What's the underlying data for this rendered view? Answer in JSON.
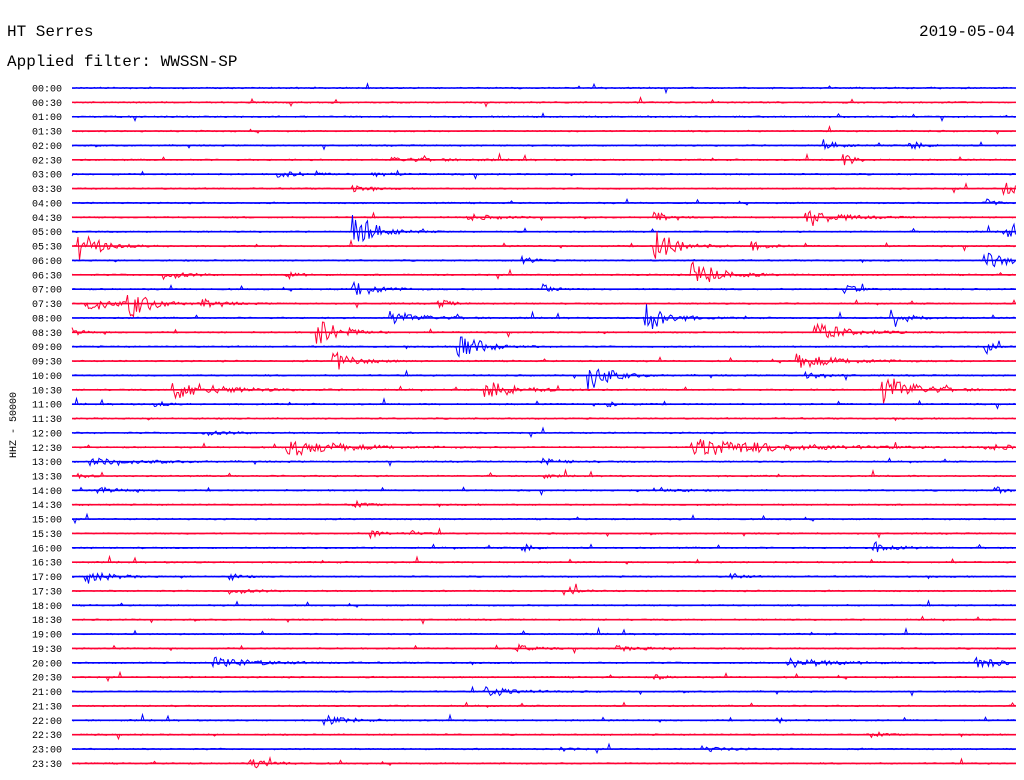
{
  "header": {
    "station": "HT Serres",
    "date": "2019-05-04",
    "filter": "Applied filter: WWSSN-SP"
  },
  "chart_data": {
    "type": "line",
    "title": "HT Serres",
    "subtitle": "Applied filter: WWSSN-SP",
    "date": "2019-05-04",
    "ylabel": "HHZ - 50000",
    "xlabel": "",
    "grid": false,
    "trace_colors": [
      "#0000ff",
      "#ff0033"
    ],
    "rows": [
      {
        "label": "00:00",
        "events": []
      },
      {
        "label": "00:30",
        "events": []
      },
      {
        "label": "01:00",
        "events": []
      },
      {
        "label": "01:30",
        "events": []
      },
      {
        "label": "02:00",
        "events": [
          {
            "x": 0.8,
            "amp": 0.5,
            "dur": 0.015
          },
          {
            "x": 0.89,
            "amp": 0.6,
            "dur": 0.012
          }
        ]
      },
      {
        "label": "02:30",
        "events": [
          {
            "x": 0.34,
            "amp": 0.3,
            "dur": 0.05
          },
          {
            "x": 0.82,
            "amp": 0.8,
            "dur": 0.01
          }
        ]
      },
      {
        "label": "03:00",
        "events": [
          {
            "x": 0.22,
            "amp": 0.4,
            "dur": 0.03
          },
          {
            "x": 0.32,
            "amp": 0.3,
            "dur": 0.02
          }
        ]
      },
      {
        "label": "03:30",
        "events": [
          {
            "x": 0.99,
            "amp": 0.8,
            "dur": 0.02
          },
          {
            "x": 0.3,
            "amp": 0.4,
            "dur": 0.015
          }
        ]
      },
      {
        "label": "04:00",
        "events": [
          {
            "x": 0.97,
            "amp": 0.5,
            "dur": 0.01
          }
        ]
      },
      {
        "label": "04:30",
        "events": [
          {
            "x": 0.78,
            "amp": 1.1,
            "dur": 0.03
          },
          {
            "x": 0.62,
            "amp": 0.7,
            "dur": 0.01
          },
          {
            "x": 0.42,
            "amp": 0.4,
            "dur": 0.03
          }
        ]
      },
      {
        "label": "05:00",
        "events": [
          {
            "x": 0.3,
            "amp": 2.6,
            "dur": 0.02
          },
          {
            "x": 0.99,
            "amp": 0.9,
            "dur": 0.012
          }
        ]
      },
      {
        "label": "05:30",
        "events": [
          {
            "x": 0.01,
            "amp": 1.9,
            "dur": 0.02
          },
          {
            "x": 0.62,
            "amp": 2.3,
            "dur": 0.02
          },
          {
            "x": 0.72,
            "amp": 0.6,
            "dur": 0.015
          }
        ]
      },
      {
        "label": "06:00",
        "events": [
          {
            "x": 0.97,
            "amp": 1.0,
            "dur": 0.03
          },
          {
            "x": 0.48,
            "amp": 0.5,
            "dur": 0.01
          }
        ]
      },
      {
        "label": "06:30",
        "events": [
          {
            "x": 0.66,
            "amp": 1.9,
            "dur": 0.025
          },
          {
            "x": 0.1,
            "amp": 0.6,
            "dur": 0.02
          },
          {
            "x": 0.23,
            "amp": 0.5,
            "dur": 0.01
          }
        ]
      },
      {
        "label": "07:00",
        "events": [
          {
            "x": 0.3,
            "amp": 1.3,
            "dur": 0.02
          },
          {
            "x": 0.5,
            "amp": 0.8,
            "dur": 0.01
          },
          {
            "x": 0.82,
            "amp": 0.8,
            "dur": 0.01
          }
        ]
      },
      {
        "label": "07:30",
        "events": [
          {
            "x": 0.02,
            "amp": 1.2,
            "dur": 0.02
          },
          {
            "x": 0.06,
            "amp": 2.3,
            "dur": 0.02
          },
          {
            "x": 0.14,
            "amp": 0.5,
            "dur": 0.02
          },
          {
            "x": 0.39,
            "amp": 0.6,
            "dur": 0.01
          }
        ]
      },
      {
        "label": "08:00",
        "events": [
          {
            "x": 0.34,
            "amp": 0.9,
            "dur": 0.03
          },
          {
            "x": 0.61,
            "amp": 2.2,
            "dur": 0.02
          },
          {
            "x": 0.87,
            "amp": 1.5,
            "dur": 0.015
          }
        ]
      },
      {
        "label": "08:30",
        "events": [
          {
            "x": 0.26,
            "amp": 2.2,
            "dur": 0.02
          },
          {
            "x": 0.79,
            "amp": 1.3,
            "dur": 0.03
          },
          {
            "x": 0.0,
            "amp": 0.6,
            "dur": 0.01
          }
        ]
      },
      {
        "label": "09:00",
        "events": [
          {
            "x": 0.41,
            "amp": 2.5,
            "dur": 0.02
          },
          {
            "x": 0.97,
            "amp": 0.6,
            "dur": 0.01
          }
        ]
      },
      {
        "label": "09:30",
        "events": [
          {
            "x": 0.28,
            "amp": 1.3,
            "dur": 0.02
          },
          {
            "x": 0.77,
            "amp": 1.0,
            "dur": 0.04
          }
        ]
      },
      {
        "label": "10:00",
        "events": [
          {
            "x": 0.55,
            "amp": 2.1,
            "dur": 0.02
          },
          {
            "x": 0.78,
            "amp": 0.5,
            "dur": 0.02
          }
        ]
      },
      {
        "label": "10:30",
        "events": [
          {
            "x": 0.11,
            "amp": 1.4,
            "dur": 0.04
          },
          {
            "x": 0.44,
            "amp": 1.3,
            "dur": 0.03
          },
          {
            "x": 0.86,
            "amp": 2.3,
            "dur": 0.03
          }
        ]
      },
      {
        "label": "11:00",
        "events": [
          {
            "x": 0.09,
            "amp": 0.4,
            "dur": 0.01
          },
          {
            "x": 0.57,
            "amp": 0.4,
            "dur": 0.01
          }
        ]
      },
      {
        "label": "11:30",
        "events": []
      },
      {
        "label": "12:00",
        "events": [
          {
            "x": 0.14,
            "amp": 0.3,
            "dur": 0.03
          }
        ]
      },
      {
        "label": "12:30",
        "events": [
          {
            "x": 0.23,
            "amp": 1.3,
            "dur": 0.05
          },
          {
            "x": 0.66,
            "amp": 1.4,
            "dur": 0.08
          },
          {
            "x": 0.97,
            "amp": 0.3,
            "dur": 0.05
          }
        ]
      },
      {
        "label": "13:00",
        "events": [
          {
            "x": 0.02,
            "amp": 0.5,
            "dur": 0.05
          },
          {
            "x": 0.5,
            "amp": 0.4,
            "dur": 0.02
          }
        ]
      },
      {
        "label": "13:30",
        "events": [
          {
            "x": 0.01,
            "amp": 0.3,
            "dur": 0.01
          },
          {
            "x": 0.5,
            "amp": 0.3,
            "dur": 0.01
          }
        ]
      },
      {
        "label": "14:00",
        "events": [
          {
            "x": 0.03,
            "amp": 0.4,
            "dur": 0.02
          },
          {
            "x": 0.62,
            "amp": 0.4,
            "dur": 0.02
          },
          {
            "x": 0.98,
            "amp": 0.5,
            "dur": 0.01
          }
        ]
      },
      {
        "label": "14:30",
        "events": [
          {
            "x": 0.3,
            "amp": 0.5,
            "dur": 0.01
          }
        ]
      },
      {
        "label": "15:00",
        "events": []
      },
      {
        "label": "15:30",
        "events": [
          {
            "x": 0.32,
            "amp": 0.6,
            "dur": 0.01
          },
          {
            "x": 0.36,
            "amp": 0.4,
            "dur": 0.01
          }
        ]
      },
      {
        "label": "16:00",
        "events": [
          {
            "x": 0.48,
            "amp": 0.5,
            "dur": 0.01
          },
          {
            "x": 0.85,
            "amp": 0.8,
            "dur": 0.02
          }
        ]
      },
      {
        "label": "16:30",
        "events": []
      },
      {
        "label": "17:00",
        "events": [
          {
            "x": 0.02,
            "amp": 0.9,
            "dur": 0.02
          },
          {
            "x": 0.17,
            "amp": 0.4,
            "dur": 0.01
          },
          {
            "x": 0.7,
            "amp": 0.5,
            "dur": 0.01
          }
        ]
      },
      {
        "label": "17:30",
        "events": [
          {
            "x": 0.17,
            "amp": 0.4,
            "dur": 0.02
          },
          {
            "x": 0.53,
            "amp": 0.5,
            "dur": 0.01
          }
        ]
      },
      {
        "label": "18:00",
        "events": []
      },
      {
        "label": "18:30",
        "events": []
      },
      {
        "label": "19:00",
        "events": []
      },
      {
        "label": "19:30",
        "events": [
          {
            "x": 0.47,
            "amp": 0.6,
            "dur": 0.015
          },
          {
            "x": 0.58,
            "amp": 0.3,
            "dur": 0.03
          }
        ]
      },
      {
        "label": "20:00",
        "events": [
          {
            "x": 0.15,
            "amp": 0.8,
            "dur": 0.04
          },
          {
            "x": 0.76,
            "amp": 0.7,
            "dur": 0.04
          },
          {
            "x": 0.96,
            "amp": 0.9,
            "dur": 0.02
          }
        ]
      },
      {
        "label": "20:30",
        "events": [
          {
            "x": 0.62,
            "amp": 0.3,
            "dur": 0.01
          }
        ]
      },
      {
        "label": "21:00",
        "events": [
          {
            "x": 0.44,
            "amp": 0.7,
            "dur": 0.03
          }
        ]
      },
      {
        "label": "21:30",
        "events": []
      },
      {
        "label": "22:00",
        "events": [
          {
            "x": 0.27,
            "amp": 0.6,
            "dur": 0.02
          },
          {
            "x": 0.75,
            "amp": 0.3,
            "dur": 0.01
          }
        ]
      },
      {
        "label": "22:30",
        "events": [
          {
            "x": 0.85,
            "amp": 0.4,
            "dur": 0.01
          }
        ]
      },
      {
        "label": "23:00",
        "events": [
          {
            "x": 0.67,
            "amp": 0.4,
            "dur": 0.02
          },
          {
            "x": 0.52,
            "amp": 0.3,
            "dur": 0.01
          }
        ]
      },
      {
        "label": "23:30",
        "events": [
          {
            "x": 0.19,
            "amp": 0.7,
            "dur": 0.02
          }
        ]
      }
    ]
  }
}
